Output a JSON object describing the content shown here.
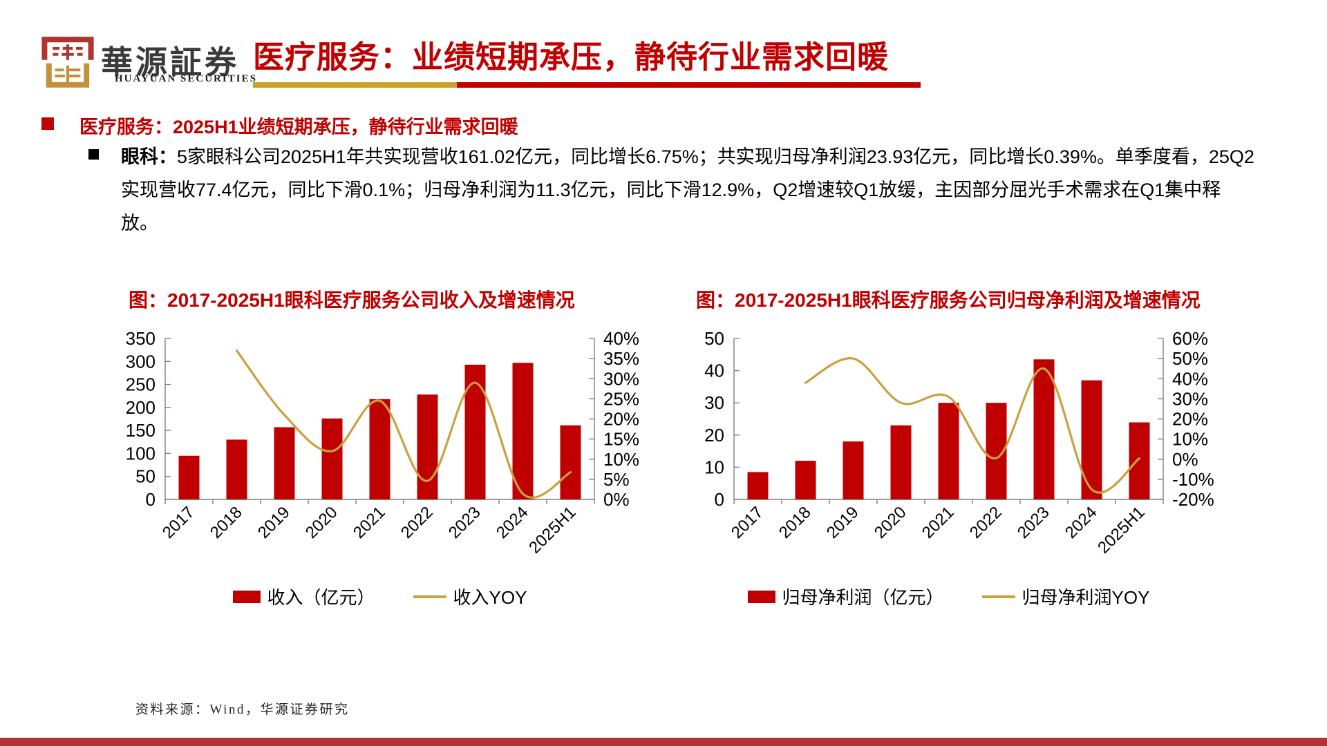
{
  "header": {
    "logo_cn": "華源証券",
    "logo_en": "HUAYUAN SECURITIES",
    "title": "医疗服务：业绩短期承压，静待行业需求回暖"
  },
  "section": {
    "heading": "医疗服务：2025H1业绩短期承压，静待行业需求回暖",
    "body_lead": "眼科：",
    "body_text": "5家眼科公司2025H1年共实现营收161.02亿元，同比增长6.75%；共实现归母净利润23.93亿元，同比增长0.39%。单季度看，25Q2实现营收77.4亿元，同比下滑0.1%；归母净利润为11.3亿元，同比下滑12.9%，Q2增速较Q1放缓，主因部分屈光手术需求在Q1集中释放。"
  },
  "source_note": "资料来源：Wind，华源证券研究",
  "colors": {
    "accent_red": "#C00000",
    "accent_gold": "#C9A13E",
    "rule_gold": "#C9A227",
    "bottom_bar": "#B23236",
    "seal_red": "#B0342F",
    "seal_gold": "#C2913A"
  },
  "chart_data": [
    {
      "type": "bar+line",
      "title": "图：2017-2025H1眼科医疗服务公司收入及增速情况",
      "categories": [
        "2017",
        "2018",
        "2019",
        "2020",
        "2021",
        "2022",
        "2023",
        "2024",
        "2025H1"
      ],
      "series": [
        {
          "name": "收入（亿元）",
          "type": "bar",
          "axis": "left",
          "color": "#C00000",
          "values": [
            95,
            130,
            157,
            176,
            218,
            228,
            293,
            297,
            161.02
          ]
        },
        {
          "name": "收入YOY",
          "type": "line",
          "axis": "right",
          "color": "#C9A13E",
          "values": [
            null,
            37,
            21,
            12,
            24.5,
            4.6,
            29,
            1.4,
            6.75
          ]
        }
      ],
      "left_axis": {
        "min": 0,
        "max": 350,
        "step": 50,
        "format": "number"
      },
      "right_axis": {
        "min": 0,
        "max": 40,
        "step": 5,
        "format": "percent"
      },
      "grid": false,
      "legend_position": "bottom"
    },
    {
      "type": "bar+line",
      "title": "图：2017-2025H1眼科医疗服务公司归母净利润及增速情况",
      "categories": [
        "2017",
        "2018",
        "2019",
        "2020",
        "2021",
        "2022",
        "2023",
        "2024",
        "2025H1"
      ],
      "series": [
        {
          "name": "归母净利润（亿元）",
          "type": "bar",
          "axis": "left",
          "color": "#C00000",
          "values": [
            8.5,
            12,
            18,
            23,
            30,
            30,
            43.5,
            37,
            23.93
          ]
        },
        {
          "name": "归母净利润YOY",
          "type": "line",
          "axis": "right",
          "color": "#C9A13E",
          "values": [
            null,
            38,
            50,
            28,
            31,
            0.5,
            45,
            -15,
            0.39
          ]
        }
      ],
      "left_axis": {
        "min": 0,
        "max": 50,
        "step": 10,
        "format": "number"
      },
      "right_axis": {
        "min": -20,
        "max": 60,
        "step": 10,
        "format": "percent"
      },
      "grid": false,
      "legend_position": "bottom"
    }
  ]
}
